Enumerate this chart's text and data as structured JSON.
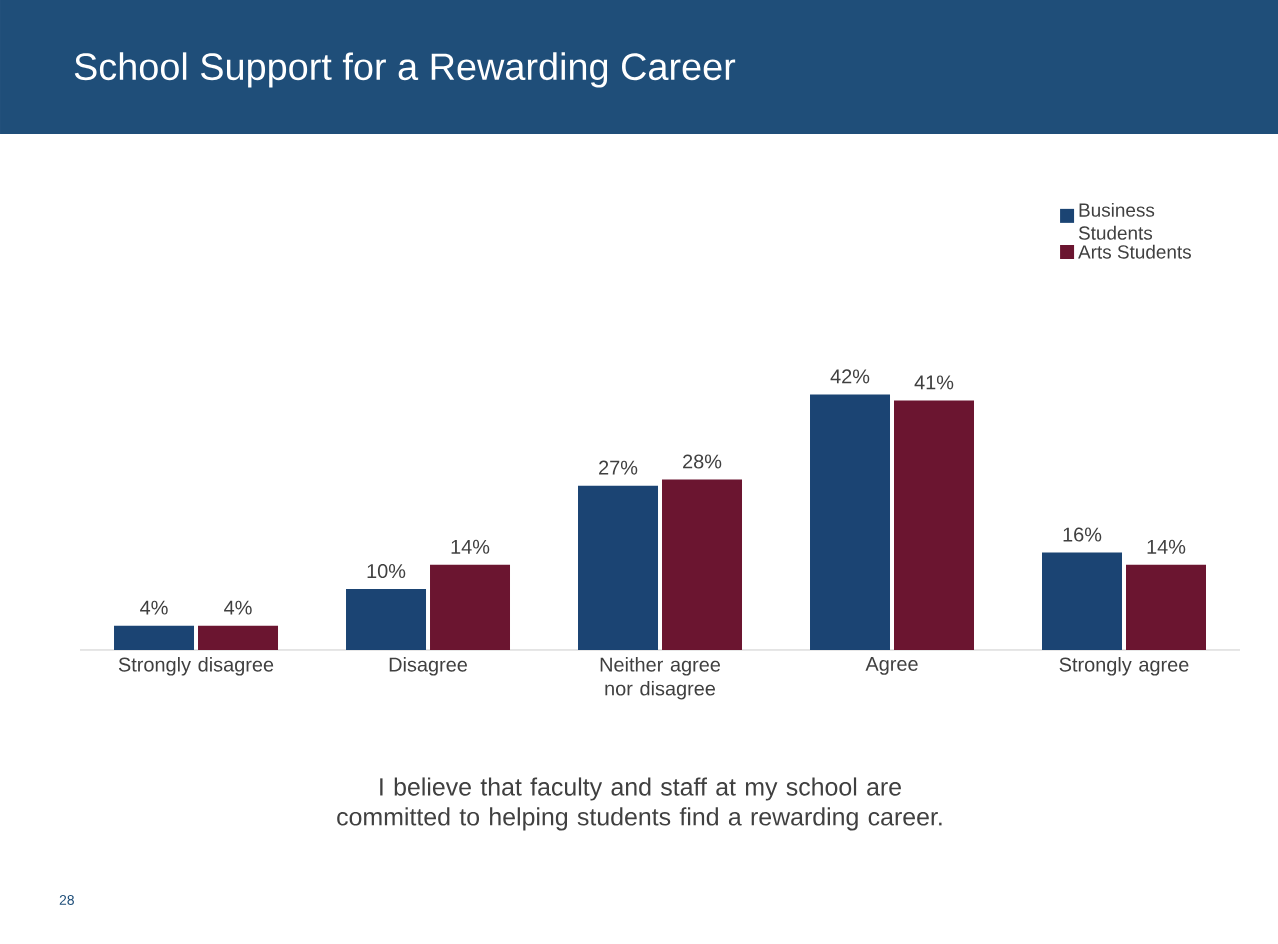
{
  "chart_data": {
    "type": "bar",
    "title": "School Support for a Rewarding Career",
    "categories": [
      "Strongly disagree",
      "Disagree",
      "Neither agree nor disagree",
      "Agree",
      "Strongly agree"
    ],
    "series": [
      {
        "name": "Business Students",
        "color": "#1b4473",
        "values": [
          4,
          10,
          27,
          42,
          16
        ],
        "value_labels": [
          "4%",
          "10%",
          "27%",
          "42%",
          "16%"
        ]
      },
      {
        "name": "Arts Students",
        "color": "#6b1530",
        "values": [
          4,
          14,
          28,
          41,
          14
        ],
        "value_labels": [
          "4%",
          "14%",
          "28%",
          "41%",
          "14%"
        ]
      }
    ],
    "annotations": [
      "I believe that faculty and staff at my school are committed to helping students find a rewarding career.",
      "28"
    ],
    "legend": "top right",
    "grid": false
  }
}
